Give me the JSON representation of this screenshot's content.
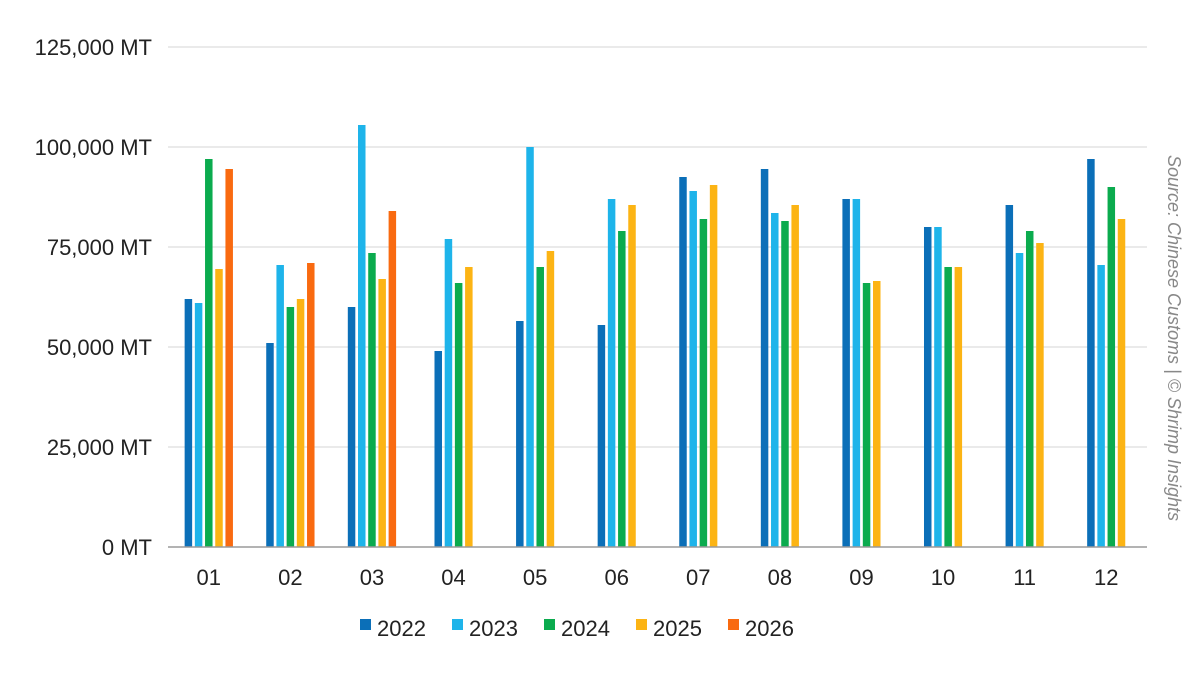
{
  "chart_data": {
    "type": "bar",
    "categories": [
      "01",
      "02",
      "03",
      "04",
      "05",
      "06",
      "07",
      "08",
      "09",
      "10",
      "11",
      "12"
    ],
    "series": [
      {
        "name": "2022",
        "color": "#0b6fb8",
        "values": [
          62000,
          51000,
          60000,
          49000,
          56500,
          55500,
          92500,
          94500,
          87000,
          80000,
          85500,
          97000
        ]
      },
      {
        "name": "2023",
        "color": "#1eb4ea",
        "values": [
          61000,
          70500,
          105500,
          77000,
          100000,
          87000,
          89000,
          83500,
          87000,
          80000,
          73500,
          70500
        ]
      },
      {
        "name": "2024",
        "color": "#0bab4e",
        "values": [
          97000,
          60000,
          73500,
          66000,
          70000,
          79000,
          82000,
          81500,
          66000,
          70000,
          79000,
          90000
        ]
      },
      {
        "name": "2025",
        "color": "#fcb414",
        "values": [
          69500,
          62000,
          67000,
          70000,
          74000,
          85500,
          90500,
          85500,
          66500,
          70000,
          76000,
          82000
        ]
      },
      {
        "name": "2026",
        "color": "#f96a10",
        "values": [
          94500,
          71000,
          84000,
          null,
          null,
          null,
          null,
          null,
          null,
          null,
          null,
          null
        ]
      }
    ],
    "yticks": [
      0,
      25000,
      50000,
      75000,
      100000,
      125000
    ],
    "ytick_labels": [
      "0 MT",
      "25,000 MT",
      "50,000 MT",
      "75,000 MT",
      "100,000 MT",
      "125,000 MT"
    ],
    "ylim": [
      0,
      125000
    ],
    "grid": true,
    "legend_position": "bottom-center",
    "title": "",
    "xlabel": "",
    "ylabel": ""
  },
  "source_note": "Source: Chinese Customs | © Shrimp Insights"
}
